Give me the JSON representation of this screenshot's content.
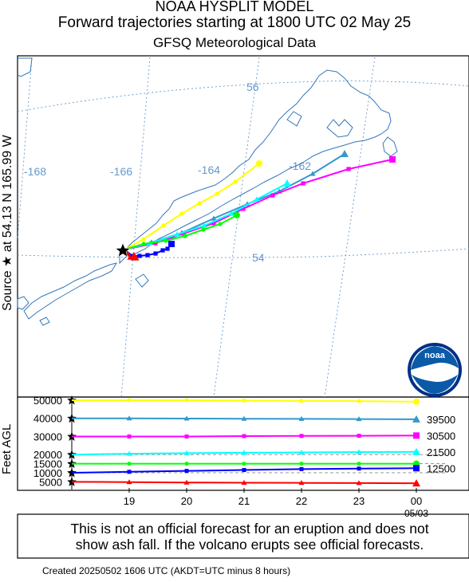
{
  "header": {
    "title_line1": "NOAA HYSPLIT MODEL",
    "title_line2": "Forward trajectories starting at 1800 UTC 02 May 25",
    "title_line3": "GFSQ Meteorological Data"
  },
  "source_label": "Source ★ at  54.13 N  165.99 W",
  "map": {
    "lon_labels": [
      "-168",
      "-166",
      "-164",
      "-162"
    ],
    "lat_labels": [
      "56",
      "54"
    ],
    "logo_text": "noaa"
  },
  "height_panel": {
    "ylabel": "Feet AGL",
    "y_ticks": [
      "50000",
      "40000",
      "30000",
      "20000",
      "15000",
      "10000",
      "5000"
    ],
    "x_ticks": [
      "19",
      "20",
      "21",
      "22",
      "23",
      "00"
    ],
    "x_date": "05/03",
    "end_labels": [
      "39500",
      "30500",
      "21500",
      "12500"
    ]
  },
  "chart_data": {
    "type": "line",
    "title": "Forward trajectories starting at 1800 UTC 02 May 25",
    "xlabel": "",
    "ylabel": "Feet AGL",
    "x": [
      "18",
      "19",
      "20",
      "21",
      "22",
      "23",
      "00"
    ],
    "series": [
      {
        "color": "#ffff00",
        "marker": "circle",
        "values": [
          50000,
          50000,
          50000,
          49800,
          49600,
          49500,
          49200
        ]
      },
      {
        "color": "#3399cc",
        "marker": "triangle",
        "values": [
          40000,
          40000,
          39900,
          39800,
          39700,
          39600,
          39500
        ]
      },
      {
        "color": "#ff00ff",
        "marker": "square",
        "values": [
          30000,
          30000,
          30000,
          30200,
          30300,
          30400,
          30500
        ]
      },
      {
        "color": "#00ffff",
        "marker": "triangle",
        "values": [
          20000,
          20500,
          20800,
          21000,
          21200,
          21400,
          21500
        ]
      },
      {
        "color": "#00ff00",
        "marker": "circle",
        "values": [
          15000,
          15000,
          15000,
          15000,
          15000,
          15000,
          15000
        ]
      },
      {
        "color": "#0000ff",
        "marker": "square",
        "values": [
          10000,
          10500,
          11000,
          11500,
          12000,
          12300,
          12500
        ]
      },
      {
        "color": "#ff0000",
        "marker": "triangle",
        "values": [
          5000,
          4800,
          4600,
          4500,
          4400,
          4300,
          4200
        ]
      }
    ]
  },
  "footer": {
    "disclaimer_line1": "This is not an official forecast for an eruption and does not",
    "disclaimer_line2": "show ash fall. If the volcano erupts see official forecasts.",
    "created": "Created 20250502 1606 UTC        (AKDT=UTC minus 8 hours)"
  }
}
